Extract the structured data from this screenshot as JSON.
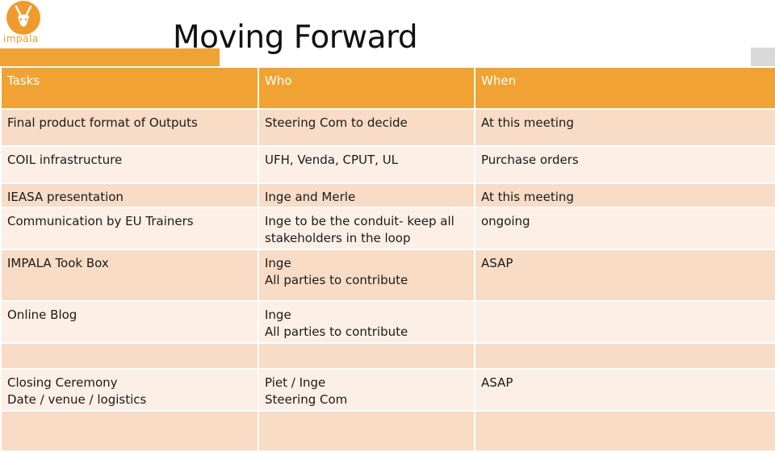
{
  "logo": {
    "text": "impala",
    "icon": "antelope-icon",
    "color": "#ef9a2a"
  },
  "title": "Moving Forward",
  "colors": {
    "header": "#f0a332",
    "row_dark": "#f8dcc6",
    "row_light": "#fcefe6"
  },
  "table": {
    "headers": [
      "Tasks",
      "Who",
      "When"
    ],
    "rows": [
      {
        "task": [
          "Final product format of Outputs"
        ],
        "who": [
          "Steering Com to decide"
        ],
        "when": [
          "At this meeting"
        ]
      },
      {
        "task": [
          "COIL infrastructure"
        ],
        "who": [
          "UFH, Venda, CPUT, UL"
        ],
        "when": [
          "Purchase orders"
        ]
      },
      {
        "task": [
          "IEASA presentation"
        ],
        "who": [
          "Inge and Merle"
        ],
        "when": [
          "At this meeting"
        ]
      },
      {
        "task": [
          "Communication by EU Trainers"
        ],
        "who": [
          "Inge  to be the conduit- keep all",
          "stakeholders in the loop"
        ],
        "when": [
          "ongoing"
        ]
      },
      {
        "task": [
          "IMPALA Took Box"
        ],
        "who": [
          "Inge",
          "All parties to contribute"
        ],
        "when": [
          "ASAP"
        ]
      },
      {
        "task": [
          "Online Blog"
        ],
        "who": [
          "Inge",
          "All parties to contribute"
        ],
        "when": []
      },
      {
        "task": [],
        "who": [],
        "when": []
      },
      {
        "task": [
          "Closing Ceremony",
          "Date / venue / logistics"
        ],
        "who": [
          "Piet / Inge",
          "Steering Com"
        ],
        "when": [
          "ASAP"
        ]
      },
      {
        "task": [],
        "who": [],
        "when": []
      }
    ]
  }
}
